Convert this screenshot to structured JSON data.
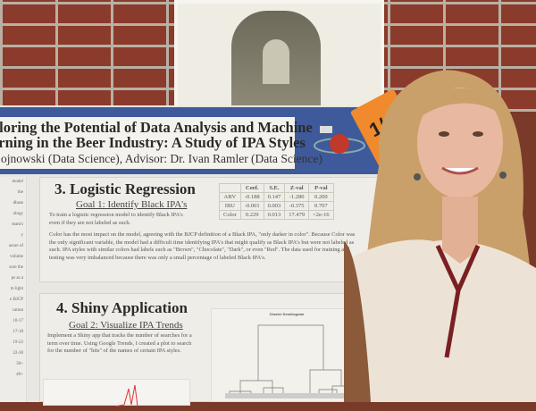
{
  "poster": {
    "title_line1": "ploring the Potential of Data Analysis and Machine",
    "title_line2": "arning in the Beer Industry: A Study of IPA Styles",
    "authors": "ojnowski (Data Science),  Advisor: Dr. Ivan Ramler (Data Science)",
    "tag_number": "1/",
    "section3": {
      "heading": "3. Logistic Regression",
      "goal": "Goal 1: Identify Black IPA's",
      "intro": "To train a logistic regression model to identify Black IPA's even if they are not labeled as such.",
      "body": "Color has the most impact on the model, agreeing with the BJCP definition of a Black IPA, \"only darker in color\". Because Color was the only significant variable, the model had a difficult time identifying IPA's that might qualify as Black IPA's but were not labeled as such. IPA styles with similar colors had labels such as \"Brown\", \"Chocolate\", \"Dark\", or even \"Red\". The data used for training and testing was very imbalanced because there was only a small percentage of labeled Black IPA's.",
      "table": {
        "headers": [
          "",
          "Coef.",
          "S.E.",
          "Z-val",
          "P-val"
        ],
        "rows": [
          [
            "ABV",
            "-0.188",
            "0.147",
            "-1.280",
            "0.200"
          ],
          [
            "IBU",
            "-0.001",
            "0.003",
            "-0.375",
            "0.707"
          ],
          [
            "Color",
            "0.229",
            "0.013",
            "17.479",
            "<2e-16"
          ]
        ]
      }
    },
    "section4": {
      "heading": "4. Shiny Application",
      "goal": "Goal 2: Visualize IPA Trends",
      "body": "Implement a Shiny app that tracks the number of searches for a term over time. Using Google Trends, I created a plot to search for the number of \"hits\" of the names of certain IPA styles.",
      "dendrogram_title": "Cluster Dendrogram"
    },
    "left_column_fragments": [
      "model",
      "the",
      "dbase",
      "ology",
      "team's",
      "y",
      "asure of",
      "volume",
      "sure the",
      "ps as a",
      "m light",
      "e BJCP",
      "cation",
      "10-17",
      "17-18",
      "19-22",
      "22-30",
      "30+",
      "40+"
    ]
  },
  "colors": {
    "band": "#3f5a9a",
    "tag": "#f08a2c",
    "brick": "#8b3b2b"
  }
}
